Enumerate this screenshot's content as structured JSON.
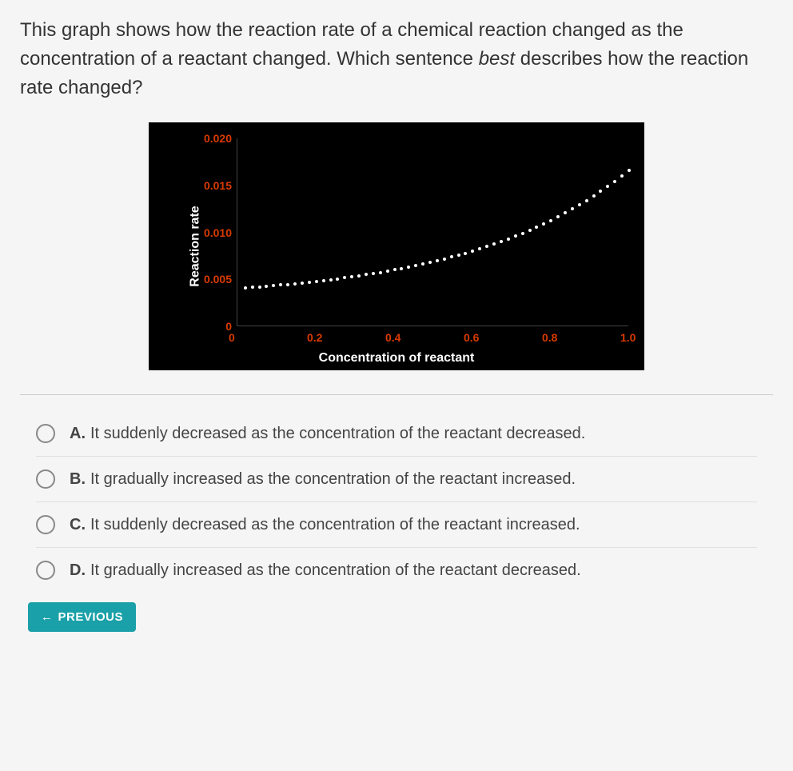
{
  "question": {
    "part1": "This graph shows how the reaction rate of a chemical reaction changed as the concentration of a reactant changed. Which sentence ",
    "italic": "best",
    "part2": " describes how the reaction rate changed?"
  },
  "chart": {
    "type": "scatter",
    "background_color": "#000000",
    "axis_label_color": "#ffffff",
    "tick_color": "#d93a00",
    "dot_color": "#ffffff",
    "ylabel": "Reaction rate",
    "xlabel": "Concentration of  reactant",
    "ylim": [
      0,
      0.02
    ],
    "yticks": [
      {
        "v": 0.02,
        "label": "0.020"
      },
      {
        "v": 0.015,
        "label": "0.015"
      },
      {
        "v": 0.01,
        "label": "0.010"
      },
      {
        "v": 0.005,
        "label": "0.005"
      },
      {
        "v": 0.0,
        "label": "0"
      }
    ],
    "xlim": [
      0,
      1.0
    ],
    "xticks": [
      {
        "v": 0.0,
        "label": "0"
      },
      {
        "v": 0.2,
        "label": "0.2"
      },
      {
        "v": 0.4,
        "label": "0.4"
      },
      {
        "v": 0.6,
        "label": "0.6"
      },
      {
        "v": 0.8,
        "label": "0.8"
      },
      {
        "v": 1.0,
        "label": "1.0"
      }
    ],
    "series": {
      "n_points": 55,
      "x_start": 0.02,
      "x_end": 1.0,
      "curve": "exponential",
      "y_start": 0.004,
      "y_end": 0.0165
    }
  },
  "options": [
    {
      "letter": "A.",
      "text": "It suddenly decreased as the concentration of the reactant decreased."
    },
    {
      "letter": "B.",
      "text": "It gradually increased as the concentration of the reactant increased."
    },
    {
      "letter": "C.",
      "text": "It suddenly decreased as the concentration of the reactant increased."
    },
    {
      "letter": "D.",
      "text": "It gradually increased as the concentration of the reactant decreased."
    }
  ],
  "nav": {
    "previous": "PREVIOUS",
    "arrow": "←"
  }
}
